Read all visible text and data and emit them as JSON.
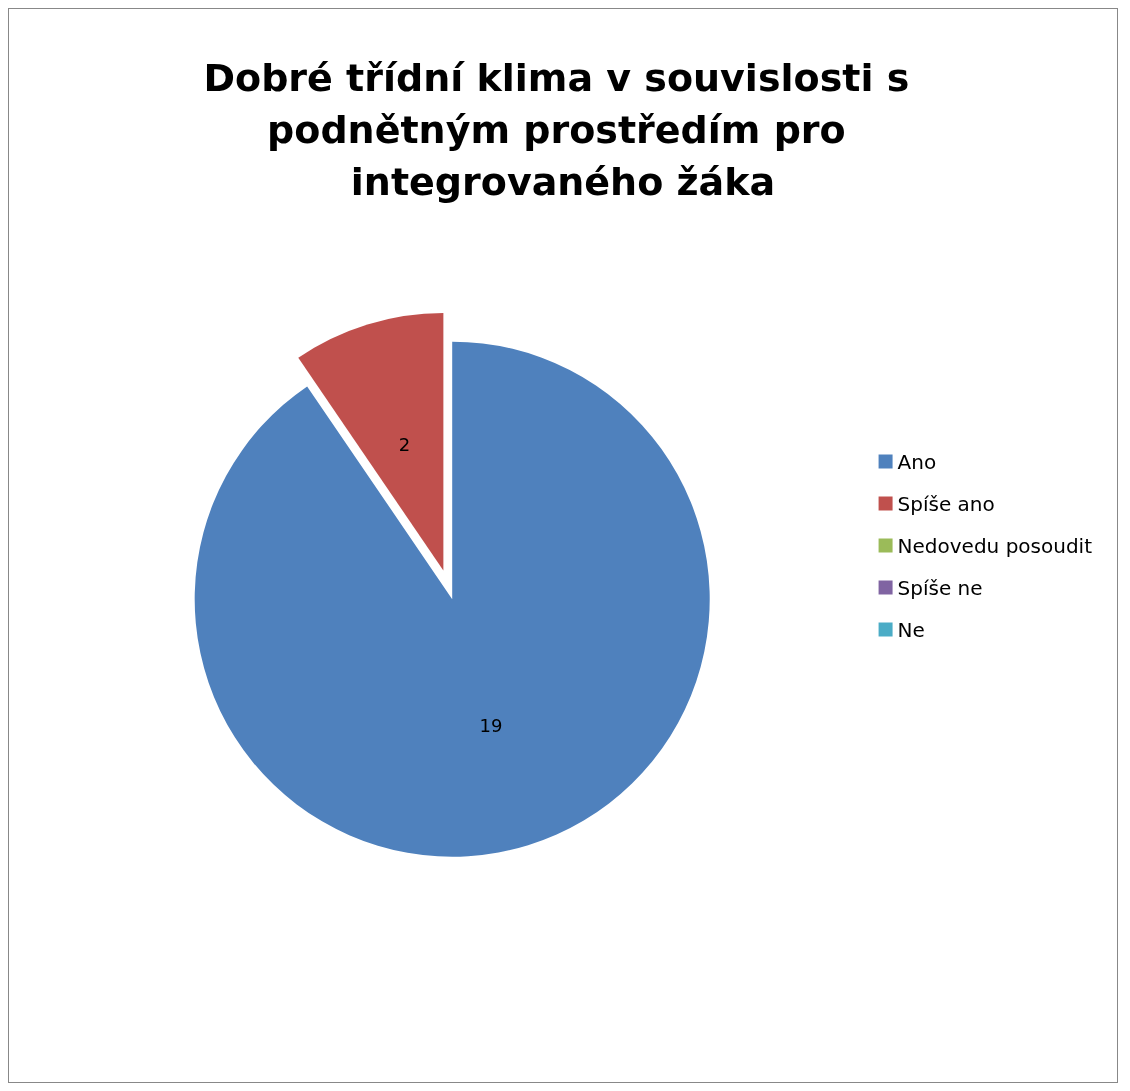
{
  "chart_data": {
    "type": "pie",
    "title": "Dobré třídní klima v souvislosti s podnětným prostředím pro integrovaného žáka",
    "categories": [
      "Ano",
      "Spíše ano",
      "Nedovedu posoudit",
      "Spíše ne",
      "Ne"
    ],
    "values": [
      19,
      2,
      0,
      0,
      0
    ],
    "value_labels": [
      "19",
      "2",
      null,
      null,
      null
    ],
    "colors": [
      "#4f81bd",
      "#c0504d",
      "#9bbb59",
      "#8064a2",
      "#4bacc6"
    ],
    "legend": "right"
  }
}
